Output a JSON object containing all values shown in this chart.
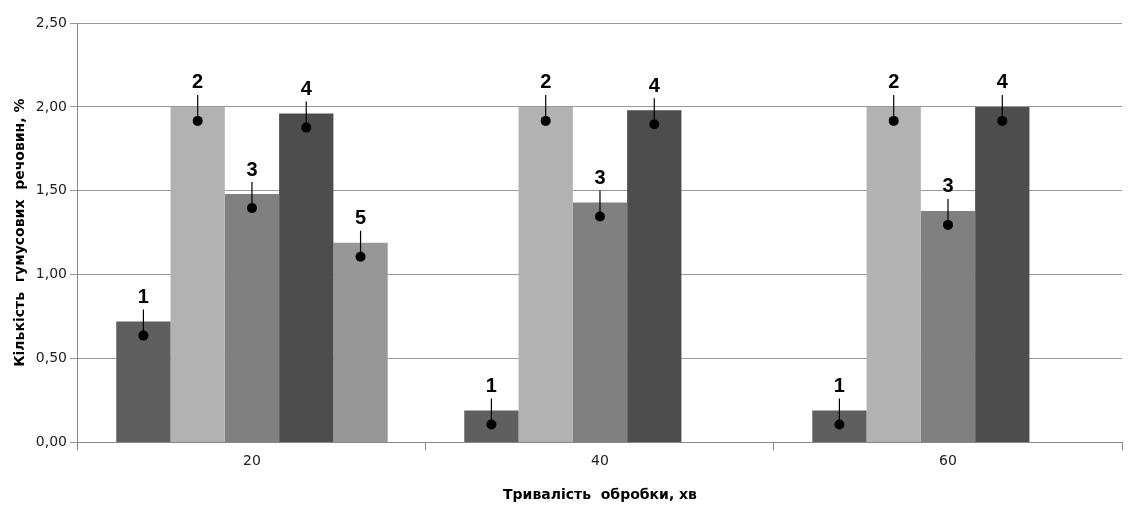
{
  "chart_data": {
    "type": "bar",
    "xlabel": "Тривалість  обробки, хв",
    "ylabel": "Кількість  гумусових  речовин, %",
    "categories": [
      "20",
      "40",
      "60"
    ],
    "series": [
      {
        "name": "1",
        "color": "#5f5f5f",
        "values": [
          0.72,
          0.19,
          0.19
        ]
      },
      {
        "name": "2",
        "color": "#b2b2b2",
        "values": [
          2.0,
          2.0,
          2.0
        ]
      },
      {
        "name": "3",
        "color": "#808080",
        "values": [
          1.48,
          1.43,
          1.38
        ]
      },
      {
        "name": "4",
        "color": "#4d4d4d",
        "values": [
          1.96,
          1.98,
          2.0
        ]
      },
      {
        "name": "5",
        "color": "#979797",
        "values": [
          1.19,
          null,
          null
        ]
      }
    ],
    "ylim": [
      0,
      2.5
    ],
    "yticks": [
      {
        "value": 0,
        "label": "0,00"
      },
      {
        "value": 0.5,
        "label": "0,50"
      },
      {
        "value": 1,
        "label": "1,00"
      },
      {
        "value": 1.5,
        "label": "1,50"
      },
      {
        "value": 2,
        "label": "2,00"
      },
      {
        "value": 2.5,
        "label": "2,50"
      }
    ],
    "grid": "y",
    "legend": false
  }
}
